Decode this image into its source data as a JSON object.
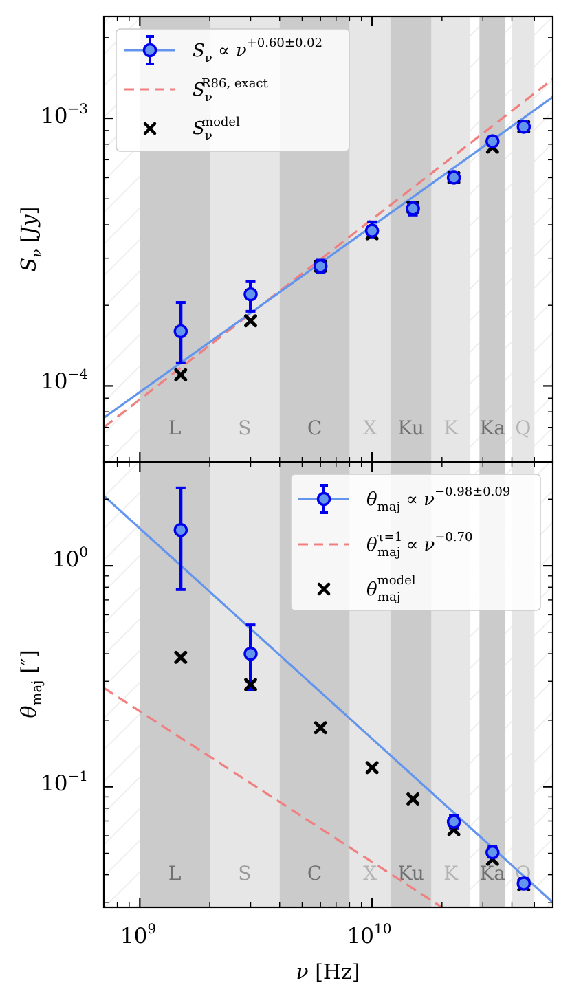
{
  "chart_data": [
    {
      "type": "scatter",
      "panel": "top",
      "ylabel": "S_ν [Jy]",
      "xscale": "log",
      "yscale": "log",
      "xlim": [
        700000000.0,
        60000000000.0
      ],
      "ylim": [
        5.2e-05,
        0.0024
      ],
      "y_ticks": [
        {
          "value": 0.0001,
          "base": "10",
          "exp": "−4"
        },
        {
          "value": 0.001,
          "base": "10",
          "exp": "−3"
        }
      ],
      "series": [
        {
          "name": "observed",
          "marker": "circle",
          "color": "#0000ee",
          "x": [
            1500000000.0,
            3000000000.0,
            6000000000.0,
            10000000000.0,
            15000000000.0,
            22500000000.0,
            33000000000.0,
            45000000000.0
          ],
          "y": [
            0.00016,
            0.00022,
            0.00028,
            0.00038,
            0.00046,
            0.0006,
            0.00082,
            0.00093
          ],
          "yerr_low": [
            0.000122,
            0.00019,
            0.000265,
            0.00036,
            0.000435,
            0.000575,
            0.00079,
            0.000895
          ],
          "yerr_high": [
            0.000205,
            0.000245,
            0.000295,
            0.00041,
            0.000485,
            0.000625,
            0.00085,
            0.000965
          ]
        },
        {
          "name": "model",
          "marker": "x",
          "color": "#000000",
          "x": [
            1500000000.0,
            3000000000.0,
            6000000000.0,
            10000000000.0,
            15000000000.0,
            22500000000.0,
            33000000000.0,
            45000000000.0
          ],
          "y": [
            0.00011,
            0.000175,
            0.00028,
            0.00037,
            0.000465,
            0.0006,
            0.00078,
            0.00093
          ]
        },
        {
          "name": "fit",
          "style": "solid",
          "color": "#6495ed",
          "x": [
            700000000.0,
            60000000000.0
          ],
          "y": [
            7.6e-05,
            0.0012
          ]
        },
        {
          "name": "R86 exact",
          "style": "dashed",
          "color": "#f08080",
          "x": [
            700000000.0,
            60000000000.0
          ],
          "y": [
            7e-05,
            0.0014
          ]
        }
      ],
      "legend": {
        "placement": "upper-left",
        "entries": [
          {
            "main": "S",
            "sub": "ν",
            "rest": " ∝ ν",
            "sup": "+0.60±0.02"
          },
          {
            "main": "S",
            "sub": "ν",
            "rest": "",
            "sup": "R86, exact"
          },
          {
            "main": "S",
            "sub": "ν",
            "rest": "",
            "sup": "model"
          }
        ]
      }
    },
    {
      "type": "scatter",
      "panel": "bottom",
      "xlabel": "ν [Hz]",
      "ylabel": "θ_maj [″]",
      "xscale": "log",
      "yscale": "log",
      "xlim": [
        700000000.0,
        60000000000.0
      ],
      "ylim": [
        0.0285,
        2.95
      ],
      "x_ticks": [
        {
          "value": 1000000000.0,
          "base": "10",
          "exp": "9"
        },
        {
          "value": 10000000000.0,
          "base": "10",
          "exp": "10"
        }
      ],
      "y_ticks": [
        {
          "value": 0.1,
          "base": "10",
          "exp": "−1"
        },
        {
          "value": 1.0,
          "base": "10",
          "exp": "0"
        }
      ],
      "series": [
        {
          "name": "observed",
          "marker": "circle",
          "color": "#0000ee",
          "x": [
            1500000000.0,
            3000000000.0,
            22500000000.0,
            33000000000.0,
            45000000000.0
          ],
          "y": [
            1.45,
            0.4,
            0.0695,
            0.0505,
            0.0365
          ],
          "yerr_low": [
            0.78,
            0.275,
            0.065,
            0.048,
            0.0345
          ],
          "yerr_high": [
            2.25,
            0.54,
            0.074,
            0.0535,
            0.0385
          ]
        },
        {
          "name": "model",
          "marker": "x",
          "color": "#000000",
          "x": [
            1500000000.0,
            3000000000.0,
            6000000000.0,
            10000000000.0,
            15000000000.0,
            22500000000.0,
            33000000000.0,
            45000000000.0
          ],
          "y": [
            0.385,
            0.29,
            0.185,
            0.122,
            0.088,
            0.064,
            0.047,
            0.036
          ]
        },
        {
          "name": "fit",
          "style": "solid",
          "color": "#6495ed",
          "x": [
            700000000.0,
            60000000000.0
          ],
          "y": [
            2.07,
            0.03
          ]
        },
        {
          "name": "tau=1",
          "style": "dashed",
          "color": "#f08080",
          "x": [
            700000000.0,
            20000000000.0
          ],
          "y": [
            0.28,
            0.0285
          ]
        }
      ],
      "legend": {
        "placement": "upper-right",
        "entries": [
          {
            "main": "θ",
            "sub": "maj",
            "rest": " ∝ ν",
            "sup": "−0.98±0.09"
          },
          {
            "main": "θ",
            "sub": "maj",
            "rest": " ∝ ν",
            "sup": "−0.70",
            "sup_prefix": "τ=1"
          },
          {
            "main": "θ",
            "sub": "maj",
            "rest": "",
            "sup": "model"
          }
        ]
      }
    }
  ],
  "bands": [
    {
      "label": "L",
      "x_min": 1000000000.0,
      "x_max": 2000000000.0,
      "fill": "#cbcbcb",
      "text_color": "#707070"
    },
    {
      "label": "S",
      "x_min": 2000000000.0,
      "x_max": 4000000000.0,
      "fill": "#e6e6e6",
      "text_color": "#9a9a9a"
    },
    {
      "label": "C",
      "x_min": 4000000000.0,
      "x_max": 8000000000.0,
      "fill": "#cbcbcb",
      "text_color": "#707070"
    },
    {
      "label": "X",
      "x_min": 8000000000.0,
      "x_max": 12000000000.0,
      "fill": "#e6e6e6",
      "text_color": "#b4b4b4"
    },
    {
      "label": "Ku",
      "x_min": 12000000000.0,
      "x_max": 18000000000.0,
      "fill": "#cbcbcb",
      "text_color": "#707070"
    },
    {
      "label": "K",
      "x_min": 18000000000.0,
      "x_max": 26500000000.0,
      "fill": "#e6e6e6",
      "text_color": "#b4b4b4"
    },
    {
      "label": "Ka",
      "x_min": 29000000000.0,
      "x_max": 37500000000.0,
      "fill": "#cbcbcb",
      "text_color": "#707070"
    },
    {
      "label": "Q",
      "x_min": 40000000000.0,
      "x_max": 50000000000.0,
      "fill": "#e6e6e6",
      "text_color": "#b4b4b4"
    }
  ],
  "colors": {
    "observed": "#0000ee",
    "fit": "#6495ed",
    "reference": "#f08080",
    "model": "#000000"
  }
}
